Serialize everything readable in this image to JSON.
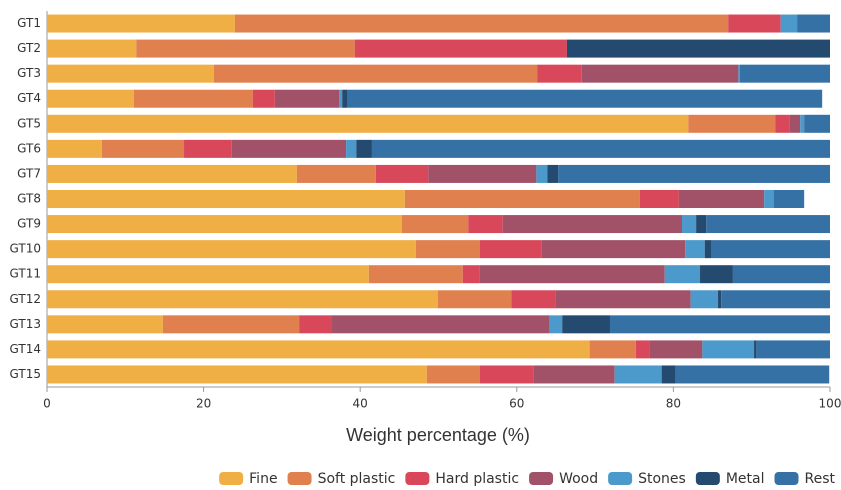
{
  "chart_data": {
    "type": "stacked-bar-horizontal",
    "categories": [
      "GT1",
      "GT2",
      "GT3",
      "GT4",
      "GT5",
      "GT6",
      "GT7",
      "GT8",
      "GT9",
      "GT10",
      "GT11",
      "GT12",
      "GT13",
      "GT14",
      "GT15"
    ],
    "series": [
      {
        "name": "Fine",
        "color": "#efaf45",
        "values": [
          24.0,
          11.4,
          21.3,
          11.1,
          81.9,
          7.0,
          31.9,
          45.7,
          45.3,
          47.1,
          41.1,
          49.9,
          14.8,
          69.3,
          48.5
        ]
      },
      {
        "name": "Soft plastic",
        "color": "#e0804f",
        "values": [
          63.0,
          27.9,
          41.3,
          15.2,
          11.1,
          10.5,
          10.1,
          30.0,
          8.5,
          8.2,
          12.0,
          9.4,
          17.4,
          5.9,
          6.8
        ]
      },
      {
        "name": "Hard plastic",
        "color": "#d8485a",
        "values": [
          6.7,
          27.1,
          5.7,
          2.8,
          1.8,
          6.1,
          6.7,
          5.0,
          4.4,
          7.9,
          2.1,
          5.6,
          4.2,
          1.7,
          6.8
        ]
      },
      {
        "name": "Wood",
        "color": "#a15268",
        "values": [
          0,
          0,
          20.0,
          8.2,
          1.4,
          14.6,
          13.8,
          10.9,
          22.9,
          18.3,
          23.7,
          17.3,
          27.8,
          6.8,
          10.4
        ]
      },
      {
        "name": "Stones",
        "color": "#4b9acb",
        "values": [
          2.1,
          0,
          0.2,
          0.4,
          0.5,
          1.3,
          1.4,
          1.2,
          1.8,
          2.5,
          4.5,
          3.5,
          1.6,
          6.6,
          6.0
        ]
      },
      {
        "name": "Metal",
        "color": "#254a70",
        "values": [
          0,
          33.6,
          0,
          0.7,
          0,
          2.0,
          1.4,
          0,
          1.3,
          0.8,
          4.2,
          0.4,
          6.1,
          0.3,
          1.8
        ]
      },
      {
        "name": "Rest",
        "color": "#3671a6",
        "values": [
          4.2,
          0,
          11.5,
          60.6,
          3.3,
          58.5,
          34.7,
          3.9,
          15.8,
          15.2,
          12.4,
          13.9,
          28.1,
          9.4,
          19.6
        ]
      }
    ],
    "x_label": "Weight percentage (%)",
    "xlim": [
      0,
      100
    ],
    "xticks": [
      0,
      20,
      40,
      60,
      80,
      100
    ],
    "legend": "bottom-right"
  }
}
